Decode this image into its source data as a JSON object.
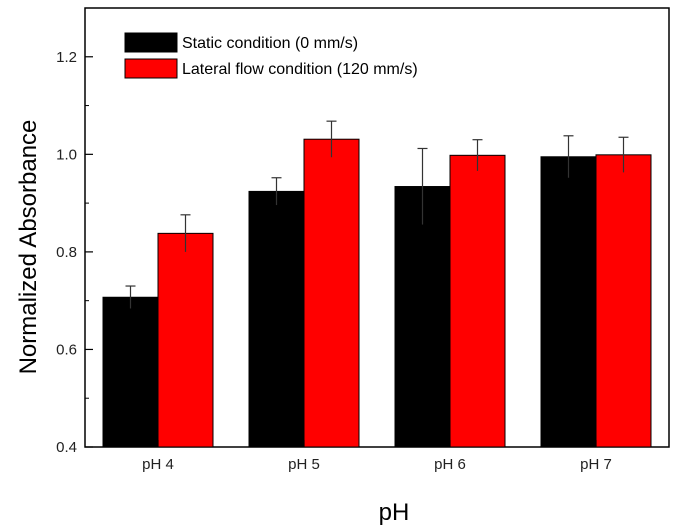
{
  "chart_data": {
    "type": "bar",
    "xlabel": "pH",
    "ylabel": "Normalized Absorbance",
    "categories": [
      "pH 4",
      "pH 5",
      "pH 6",
      "pH 7"
    ],
    "ylim": [
      0.4,
      1.3
    ],
    "yticks": [
      0.4,
      0.6,
      0.8,
      1.0,
      1.2
    ],
    "ytick_labels": [
      "0.4",
      "0.6",
      "0.8",
      "1.0",
      "1.2"
    ],
    "legend_position": "top-left",
    "grid": false,
    "series": [
      {
        "name": "Static condition (0 mm/s)",
        "color": "#000000",
        "values": [
          0.707,
          0.924,
          0.934,
          0.995
        ],
        "errors": [
          0.023,
          0.028,
          0.078,
          0.043
        ]
      },
      {
        "name": "Lateral flow condition (120 mm/s)",
        "color": "#ff0000",
        "values": [
          0.838,
          1.031,
          0.998,
          0.999
        ],
        "errors": [
          0.038,
          0.037,
          0.032,
          0.036
        ]
      }
    ]
  }
}
